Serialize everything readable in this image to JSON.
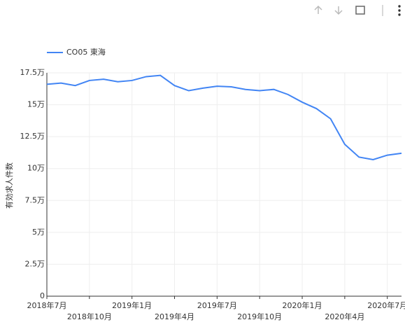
{
  "chart_data": {
    "type": "line",
    "y_label": "有効求人件数",
    "categories": [
      "2018年7月",
      null,
      null,
      "2018年10月",
      null,
      null,
      "2019年1月",
      null,
      null,
      "2019年4月",
      null,
      null,
      "2019年7月",
      null,
      null,
      "2019年10月",
      null,
      null,
      "2020年1月",
      null,
      null,
      "2020年4月",
      null,
      null,
      "2020年7月",
      null
    ],
    "series": [
      {
        "name": "CO05 東海",
        "color": "#4285f4",
        "values": [
          166000,
          167000,
          165000,
          169000,
          170000,
          168000,
          169000,
          172000,
          173000,
          165000,
          161000,
          163000,
          164500,
          164000,
          162000,
          161000,
          162000,
          158000,
          152000,
          147000,
          139000,
          119000,
          109000,
          107000,
          110500,
          112000
        ]
      }
    ],
    "ylim": [
      0,
      175000
    ],
    "yticks": [
      0,
      {
        "value": 25000,
        "label": "2.5万"
      },
      {
        "value": 50000,
        "label": "5万"
      },
      {
        "value": 75000,
        "label": "7.5万"
      },
      {
        "value": 100000,
        "label": "10万"
      },
      {
        "value": 125000,
        "label": "12.5万"
      },
      {
        "value": 150000,
        "label": "15万"
      },
      {
        "value": 175000,
        "label": "17.5万"
      }
    ],
    "grid": true
  }
}
